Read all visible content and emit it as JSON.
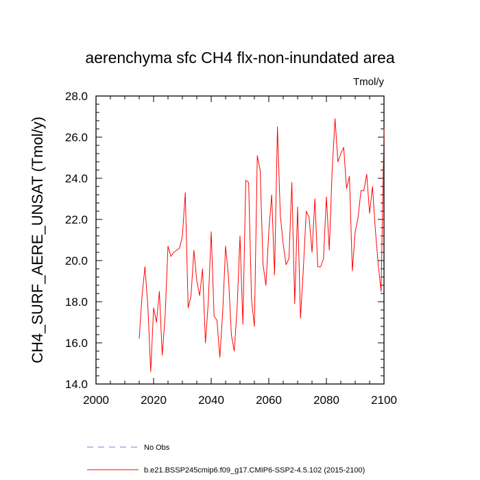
{
  "chart_data": {
    "type": "line",
    "title": "aerenchyma sfc CH4 flx-non-inundated area",
    "units": "Tmol/y",
    "ylabel": "CH4_SURF_AERE_UNSAT  (Tmol/y)",
    "xlabel": "",
    "xlim": [
      2000,
      2100
    ],
    "ylim": [
      14.0,
      28.0
    ],
    "x_ticks": [
      2000,
      2020,
      2040,
      2060,
      2080,
      2100
    ],
    "x_tick_labels": [
      "2000",
      "2020",
      "2040",
      "2060",
      "2080",
      "2100"
    ],
    "y_ticks": [
      14,
      16,
      18,
      20,
      22,
      24,
      26,
      28
    ],
    "y_tick_labels": [
      "14.0",
      "16.0",
      "18.0",
      "20.0",
      "22.0",
      "24.0",
      "26.0",
      "28.0"
    ],
    "grid": false,
    "legend_position": "bottom-left",
    "series": [
      {
        "name": "b.e21.BSSP245cmip6.f09_g17.CMIP6-SSP2-4.5.102 (2015-2100)",
        "color": "#ff0000",
        "style": "solid",
        "x": [
          2015,
          2016,
          2017,
          2018,
          2019,
          2020,
          2021,
          2022,
          2023,
          2024,
          2025,
          2026,
          2027,
          2028,
          2029,
          2030,
          2031,
          2032,
          2033,
          2034,
          2035,
          2036,
          2037,
          2038,
          2039,
          2040,
          2041,
          2042,
          2043,
          2044,
          2045,
          2046,
          2047,
          2048,
          2049,
          2050,
          2051,
          2052,
          2053,
          2054,
          2055,
          2056,
          2057,
          2058,
          2059,
          2060,
          2061,
          2062,
          2063,
          2064,
          2065,
          2066,
          2067,
          2068,
          2069,
          2070,
          2071,
          2072,
          2073,
          2074,
          2075,
          2076,
          2077,
          2078,
          2079,
          2080,
          2081,
          2082,
          2083,
          2084,
          2085,
          2086,
          2087,
          2088,
          2089,
          2090,
          2091,
          2092,
          2093,
          2094,
          2095,
          2096,
          2097,
          2098,
          2099,
          2100
        ],
        "values": [
          16.2,
          18.3,
          19.7,
          17.8,
          14.6,
          17.7,
          17.0,
          18.5,
          15.4,
          17.3,
          20.7,
          20.2,
          20.4,
          20.5,
          20.6,
          21.2,
          23.3,
          17.7,
          18.3,
          20.5,
          19.0,
          18.3,
          19.6,
          16.0,
          18.0,
          21.4,
          17.3,
          17.1,
          15.3,
          17.5,
          20.7,
          19.2,
          16.4,
          15.6,
          17.7,
          21.2,
          16.9,
          23.9,
          23.8,
          18.1,
          16.8,
          25.1,
          24.4,
          19.8,
          18.8,
          21.4,
          23.2,
          19.3,
          26.5,
          22.2,
          20.8,
          19.8,
          20.1,
          23.8,
          17.9,
          22.6,
          17.2,
          19.6,
          22.4,
          22.1,
          20.4,
          23.0,
          19.7,
          19.7,
          20.1,
          23.1,
          20.5,
          24.4,
          26.9,
          24.8,
          25.2,
          25.5,
          23.5,
          24.1,
          19.5,
          21.4,
          22.1,
          23.4,
          23.4,
          24.2,
          22.3,
          23.6,
          21.5,
          19.8,
          18.5,
          26.4
        ]
      },
      {
        "name": "No Obs",
        "color": "#7a7ad6",
        "style": "dashed",
        "x": [],
        "values": []
      }
    ]
  }
}
